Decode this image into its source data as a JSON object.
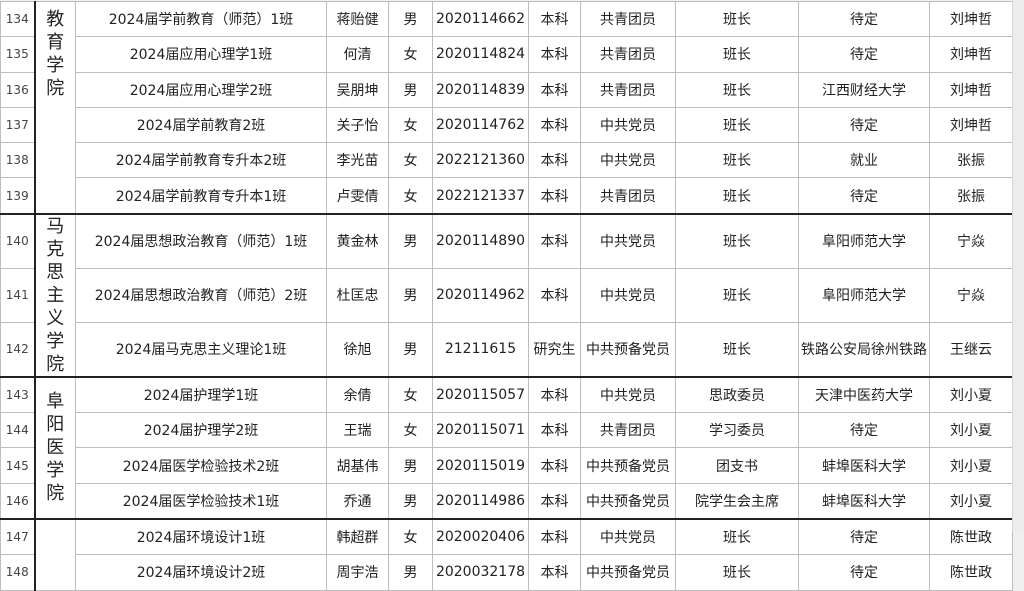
{
  "colleges": [
    {
      "name": "教育学院",
      "rows": 6,
      "align": "top"
    },
    {
      "name": "马克思主义学院",
      "rows": 3,
      "align": "middle"
    },
    {
      "name": "阜阳医学院",
      "rows": 4,
      "align": "middle"
    },
    {
      "name": "",
      "rows": 2,
      "align": "middle"
    }
  ],
  "rows": [
    {
      "no": "134",
      "class": "2024届学前教育（师范）1班",
      "name": "蒋贻健",
      "gender": "男",
      "id": "2020114662",
      "level": "本科",
      "party": "共青团员",
      "role": "班长",
      "dest": "待定",
      "teacher": "刘坤哲"
    },
    {
      "no": "135",
      "class": "2024届应用心理学1班",
      "name": "何清",
      "gender": "女",
      "id": "2020114824",
      "level": "本科",
      "party": "共青团员",
      "role": "班长",
      "dest": "待定",
      "teacher": "刘坤哲"
    },
    {
      "no": "136",
      "class": "2024届应用心理学2班",
      "name": "吴朋坤",
      "gender": "男",
      "id": "2020114839",
      "level": "本科",
      "party": "共青团员",
      "role": "班长",
      "dest": "江西财经大学",
      "teacher": "刘坤哲"
    },
    {
      "no": "137",
      "class": "2024届学前教育2班",
      "name": "关子怡",
      "gender": "女",
      "id": "2020114762",
      "level": "本科",
      "party": "中共党员",
      "role": "班长",
      "dest": "待定",
      "teacher": "刘坤哲"
    },
    {
      "no": "138",
      "class": "2024届学前教育专升本2班",
      "name": "李光苗",
      "gender": "女",
      "id": "2022121360",
      "level": "本科",
      "party": "中共党员",
      "role": "班长",
      "dest": "就业",
      "teacher": "张振"
    },
    {
      "no": "139",
      "class": "2024届学前教育专升本1班",
      "name": "卢雯倩",
      "gender": "女",
      "id": "2022121337",
      "level": "本科",
      "party": "共青团员",
      "role": "班长",
      "dest": "待定",
      "teacher": "张振"
    },
    {
      "no": "140",
      "class": "2024届思想政治教育（师范）1班",
      "name": "黄金林",
      "gender": "男",
      "id": "2020114890",
      "level": "本科",
      "party": "中共党员",
      "role": "班长",
      "dest": "阜阳师范大学",
      "teacher": "宁焱"
    },
    {
      "no": "141",
      "class": "2024届思想政治教育（师范）2班",
      "name": "杜匡忠",
      "gender": "男",
      "id": "2020114962",
      "level": "本科",
      "party": "中共党员",
      "role": "班长",
      "dest": "阜阳师范大学",
      "teacher": "宁焱"
    },
    {
      "no": "142",
      "class": "2024届马克思主义理论1班",
      "name": "徐旭",
      "gender": "男",
      "id": "21211615",
      "level": "研究生",
      "party": "中共预备党员",
      "role": "班长",
      "dest": "铁路公安局徐州铁路",
      "teacher": "王继云"
    },
    {
      "no": "143",
      "class": "2024届护理学1班",
      "name": "余倩",
      "gender": "女",
      "id": "2020115057",
      "level": "本科",
      "party": "中共党员",
      "role": "思政委员",
      "dest": "天津中医药大学",
      "teacher": "刘小夏"
    },
    {
      "no": "144",
      "class": "2024届护理学2班",
      "name": "王瑞",
      "gender": "女",
      "id": "2020115071",
      "level": "本科",
      "party": "共青团员",
      "role": "学习委员",
      "dest": "待定",
      "teacher": "刘小夏"
    },
    {
      "no": "145",
      "class": "2024届医学检验技术2班",
      "name": "胡基伟",
      "gender": "男",
      "id": "2020115019",
      "level": "本科",
      "party": "中共预备党员",
      "role": "团支书",
      "dest": "蚌埠医科大学",
      "teacher": "刘小夏"
    },
    {
      "no": "146",
      "class": "2024届医学检验技术1班",
      "name": "乔通",
      "gender": "男",
      "id": "2020114986",
      "level": "本科",
      "party": "中共预备党员",
      "role": "院学生会主席",
      "dest": "蚌埠医科大学",
      "teacher": "刘小夏"
    },
    {
      "no": "147",
      "class": "2024届环境设计1班",
      "name": "韩超群",
      "gender": "女",
      "id": "2020020406",
      "level": "本科",
      "party": "中共党员",
      "role": "班长",
      "dest": "待定",
      "teacher": "陈世政"
    },
    {
      "no": "148",
      "class": "2024届环境设计2班",
      "name": "周宇浩",
      "gender": "男",
      "id": "2020032178",
      "level": "本科",
      "party": "中共预备党员",
      "role": "班长",
      "dest": "待定",
      "teacher": "陈世政"
    }
  ]
}
